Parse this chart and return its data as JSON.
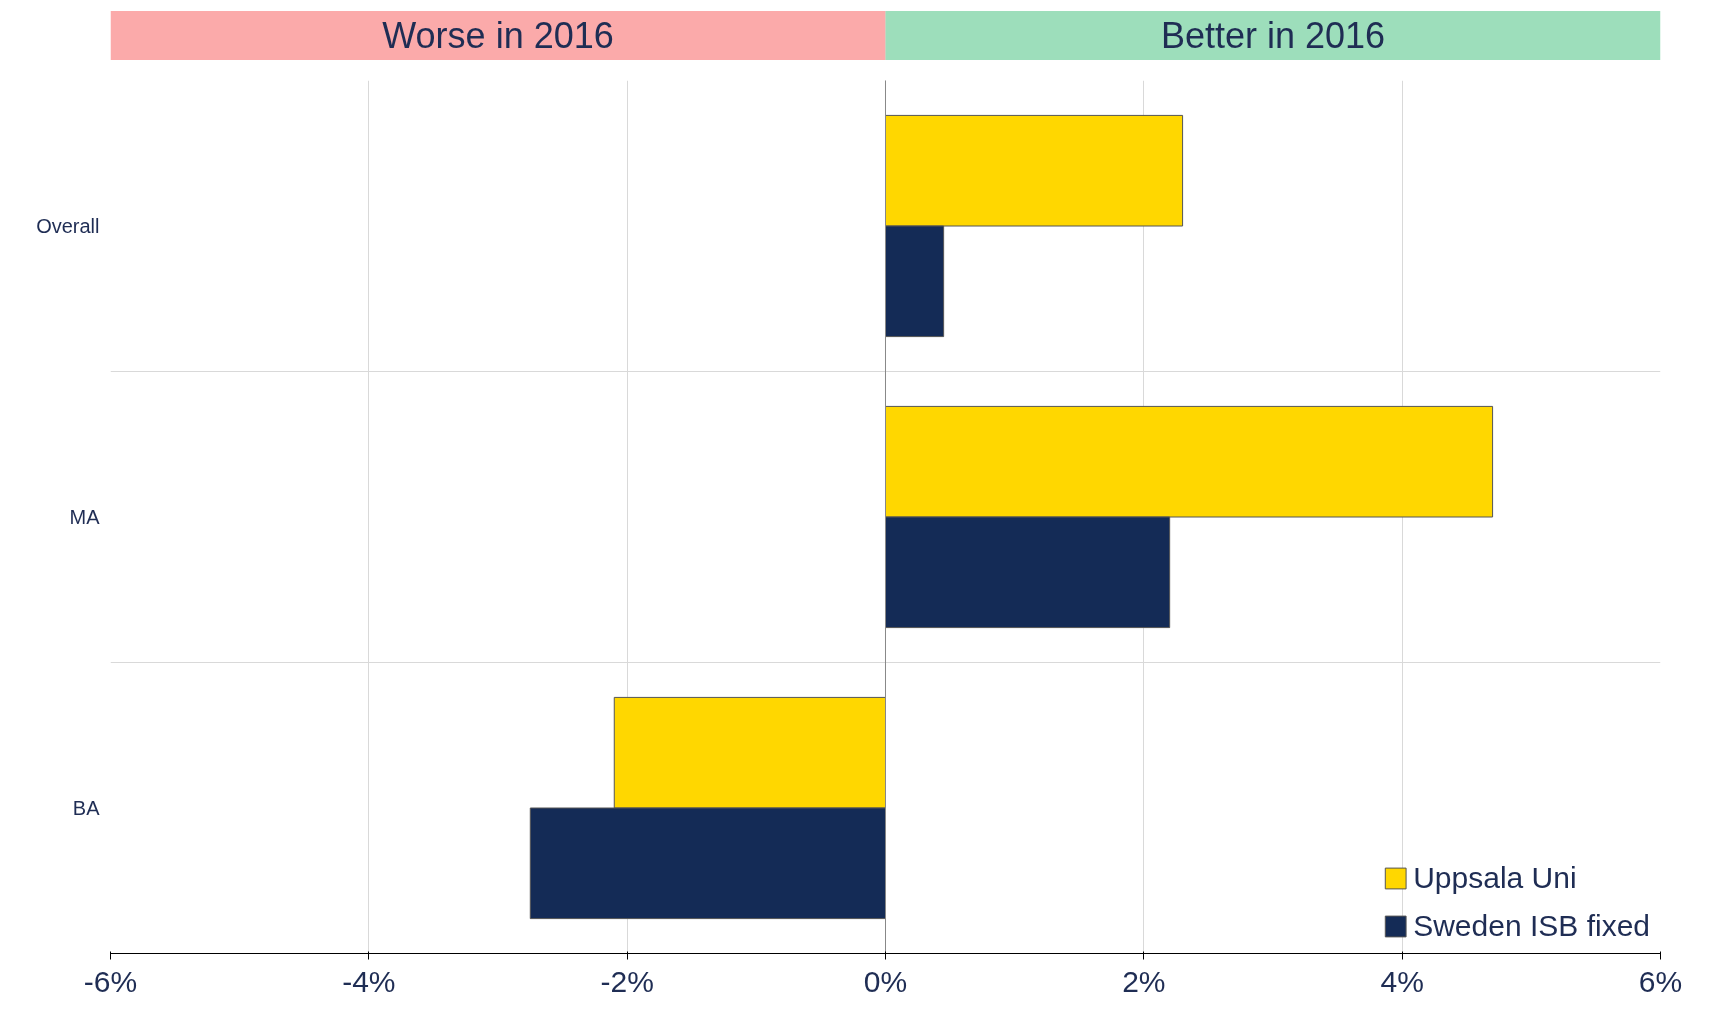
{
  "chart_data": {
    "type": "bar",
    "orientation": "horizontal",
    "categories": [
      "Overall",
      "MA",
      "BA"
    ],
    "series": [
      {
        "name": "Uppsala Uni",
        "color": "#ffd700",
        "values": [
          2.3,
          4.7,
          -2.1
        ]
      },
      {
        "name": "Sweden ISB fixed",
        "color": "#142b56",
        "values": [
          0.45,
          2.2,
          -2.75
        ]
      }
    ],
    "xlim": [
      -6,
      6
    ],
    "xticks": [
      {
        "value": -6,
        "label": "-6%"
      },
      {
        "value": -4,
        "label": "-4%"
      },
      {
        "value": -2,
        "label": "-2%"
      },
      {
        "value": 0,
        "label": "0%"
      },
      {
        "value": 2,
        "label": "2%"
      },
      {
        "value": 4,
        "label": "4%"
      },
      {
        "value": 6,
        "label": "6%"
      }
    ],
    "annotations": [
      "Worse in 2016",
      "Better in 2016"
    ],
    "grid": true,
    "legend": "bottom right"
  }
}
